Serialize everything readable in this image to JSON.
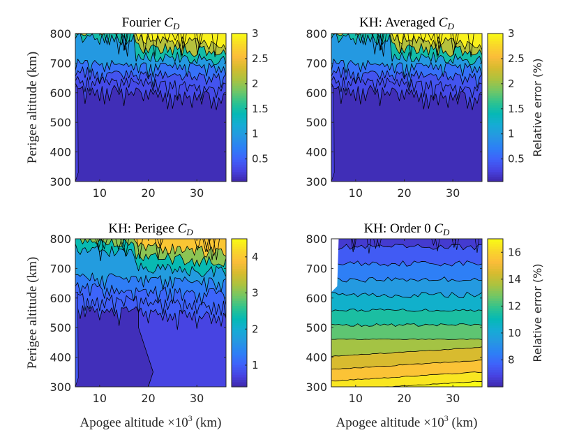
{
  "figure": {
    "panels": [
      {
        "title": "Fourier C_D",
        "title_text": "Fourier ",
        "title_math": "C",
        "title_sub": "D",
        "ylabel": "Perigee altitude (km)",
        "xlabel": "",
        "colorbar_label": "",
        "colorbar_ticks": [
          "0.5",
          "1",
          "1.5",
          "2",
          "2.5",
          "3"
        ]
      },
      {
        "title": "KH: Averaged C_D",
        "title_text": "KH: Averaged ",
        "title_math": "C",
        "title_sub": "D",
        "ylabel": "",
        "xlabel": "",
        "colorbar_label": "Relative error (%)",
        "colorbar_ticks": [
          "0.5",
          "1",
          "1.5",
          "2",
          "2.5",
          "3"
        ]
      },
      {
        "title": "KH: Perigee C_D",
        "title_text": "KH: Perigee ",
        "title_math": "C",
        "title_sub": "D",
        "ylabel": "Perigee altitude (km)",
        "xlabel": "Apogee altitude ×10³ (km)",
        "colorbar_label": "",
        "colorbar_ticks": [
          "1",
          "2",
          "3",
          "4"
        ]
      },
      {
        "title": "KH: Order 0 C_D",
        "title_text": "KH: Order 0 ",
        "title_math": "C",
        "title_sub": "D",
        "ylabel": "",
        "xlabel": "Apogee altitude ×10³ (km)",
        "colorbar_label": "Relative error (%)",
        "colorbar_ticks": [
          "8",
          "10",
          "12",
          "14",
          "16"
        ]
      }
    ],
    "colors": {
      "parula": [
        "#3e26a8",
        "#4743e1",
        "#3f62fa",
        "#2d80f6",
        "#2697e2",
        "#16acd5",
        "#05b9b5",
        "#30c38e",
        "#73c665",
        "#acc23f",
        "#d6bb2f",
        "#fbbd3a",
        "#f9d72a",
        "#f9fb15"
      ]
    }
  },
  "chart_data": [
    {
      "type": "contour",
      "title": "Fourier C_D",
      "ylabel": "Perigee altitude (km)",
      "x_ticks": [
        10,
        20,
        30
      ],
      "y_ticks": [
        300,
        400,
        500,
        600,
        700,
        800
      ],
      "xlim": [
        5,
        36
      ],
      "ylim": [
        300,
        800
      ],
      "clim": [
        0.05,
        3
      ],
      "colorbar_ticks": [
        0.5,
        1,
        1.5,
        2,
        2.5,
        3
      ],
      "base_value": 0.1,
      "noise_start_altitude": 610,
      "peak_value": 3
    },
    {
      "type": "contour",
      "title": "KH: Averaged C_D",
      "x_ticks": [
        10,
        20,
        30
      ],
      "y_ticks": [
        300,
        400,
        500,
        600,
        700,
        800
      ],
      "xlim": [
        5,
        36
      ],
      "ylim": [
        300,
        800
      ],
      "clim": [
        0.05,
        3
      ],
      "colorbar_label": "Relative error (%)",
      "colorbar_ticks": [
        0.5,
        1,
        1.5,
        2,
        2.5,
        3
      ],
      "base_value": 0.1,
      "noise_start_altitude": 610,
      "peak_value": 3
    },
    {
      "type": "contour",
      "title": "KH: Perigee C_D",
      "xlabel": "Apogee altitude ×10³ (km)",
      "ylabel": "Perigee altitude (km)",
      "x_ticks": [
        10,
        20,
        30
      ],
      "y_ticks": [
        300,
        400,
        500,
        600,
        700,
        800
      ],
      "xlim": [
        5,
        36
      ],
      "ylim": [
        300,
        800
      ],
      "clim": [
        0.4,
        4.5
      ],
      "colorbar_ticks": [
        1,
        2,
        3,
        4
      ],
      "region_boundary_apogee": [
        20,
        21,
        20,
        19,
        18,
        18
      ],
      "region_boundary_perigee": [
        300,
        350,
        400,
        450,
        500,
        600
      ],
      "left_region_value": 0.5,
      "right_region_value": 0.8,
      "peak_value": 4.3
    },
    {
      "type": "contour",
      "title": "KH: Order 0 C_D",
      "xlabel": "Apogee altitude ×10³ (km)",
      "x_ticks": [
        10,
        20,
        30
      ],
      "y_ticks": [
        300,
        400,
        500,
        600,
        700,
        800
      ],
      "xlim": [
        5,
        36
      ],
      "ylim": [
        300,
        800
      ],
      "clim": [
        6,
        17
      ],
      "colorbar_label": "Relative error (%)",
      "colorbar_ticks": [
        8,
        10,
        12,
        14,
        16
      ],
      "levels": [
        7,
        8,
        9,
        10,
        11,
        12,
        13,
        14,
        15,
        16,
        17
      ],
      "value_at_300km": 17,
      "value_at_800km": 6.5
    }
  ]
}
